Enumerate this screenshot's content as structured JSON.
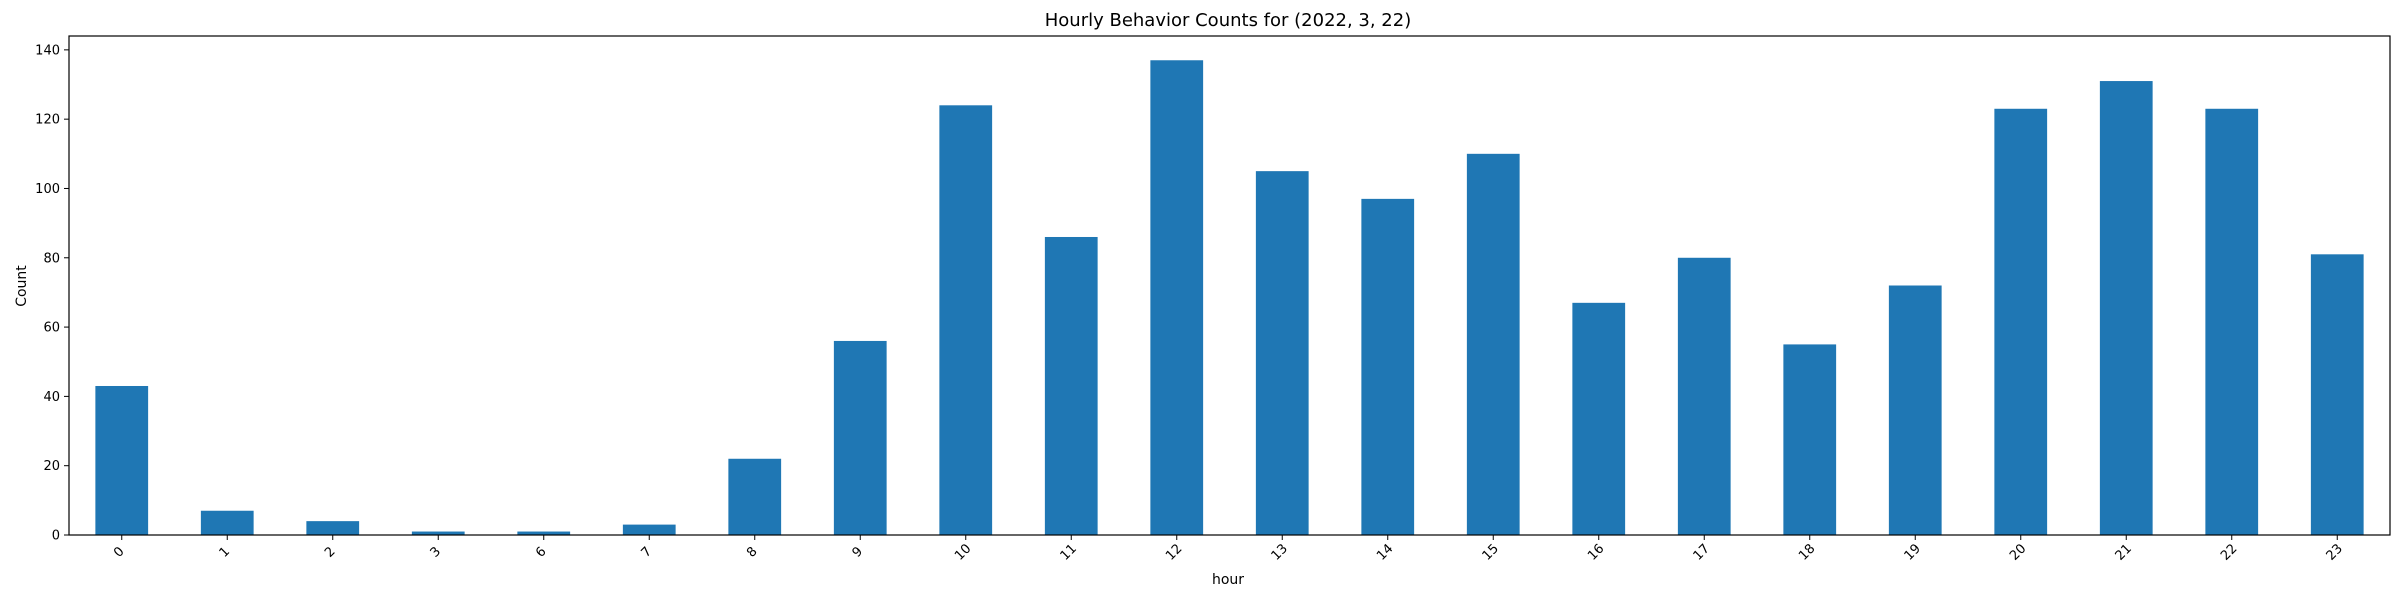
{
  "chart_data": {
    "type": "bar",
    "title": "Hourly Behavior Counts for (2022, 3, 22)",
    "xlabel": "hour",
    "ylabel": "Count",
    "categories": [
      "0",
      "1",
      "2",
      "3",
      "6",
      "7",
      "8",
      "9",
      "10",
      "11",
      "12",
      "13",
      "14",
      "15",
      "16",
      "17",
      "18",
      "19",
      "20",
      "21",
      "22",
      "23"
    ],
    "values": [
      43,
      7,
      4,
      1,
      1,
      3,
      22,
      56,
      124,
      86,
      137,
      105,
      97,
      110,
      67,
      80,
      55,
      72,
      123,
      131,
      123,
      81
    ],
    "ylim": [
      0,
      144
    ],
    "yticks": [
      0,
      20,
      40,
      60,
      80,
      100,
      120,
      140
    ],
    "grid": false,
    "bar_color": "#1f77b4"
  }
}
